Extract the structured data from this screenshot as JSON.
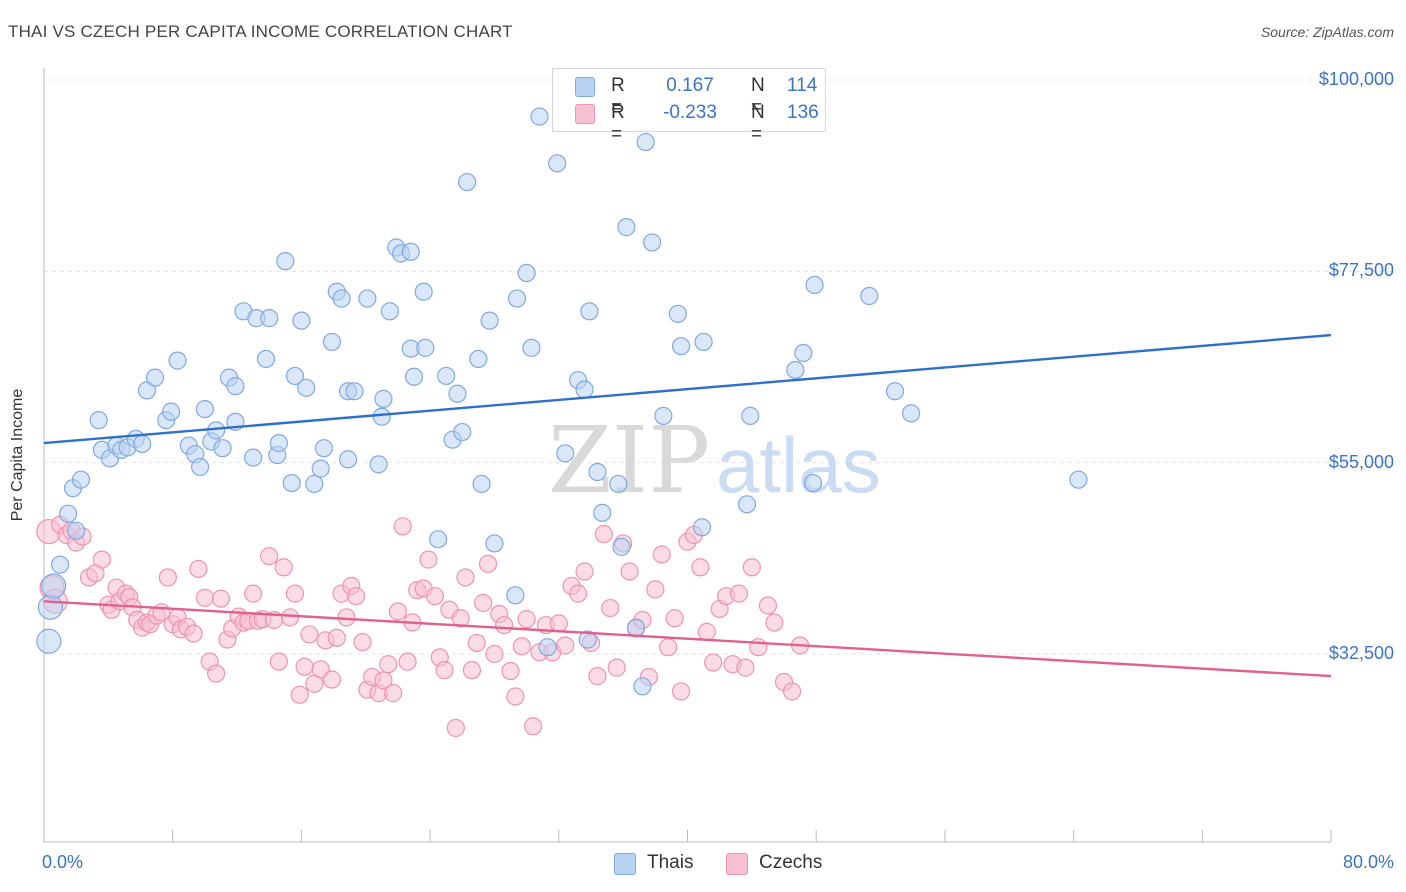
{
  "title": "THAI VS CZECH PER CAPITA INCOME CORRELATION CHART",
  "source": "Source: ZipAtlas.com",
  "watermark": {
    "zip": "ZIP",
    "atlas": "atlas"
  },
  "legend": {
    "thais": {
      "r_label": "R =",
      "r_value": "0.167",
      "n_label": "N =",
      "n_value": "114"
    },
    "czechs": {
      "r_label": "R =",
      "r_value": "-0.233",
      "n_label": "N =",
      "n_value": "136"
    }
  },
  "bottom_legend": {
    "thais": "Thais",
    "czechs": "Czechs"
  },
  "colors": {
    "thais_fill": "#b9d3f3",
    "thais_stroke": "#7fa9e0",
    "thais_line": "#2f6fcc",
    "czechs_fill": "#f7c0d2",
    "czechs_stroke": "#ee93b0",
    "czechs_line": "#e0608f",
    "tick_text": "#3a74c7"
  },
  "chart_data": {
    "type": "scatter",
    "title": "THAI VS CZECH PER CAPITA INCOME CORRELATION CHART",
    "ylabel": "Per Capita Income",
    "xlabel": "",
    "xlim": [
      0,
      80
    ],
    "ylim": [
      15000,
      105000
    ],
    "x_tick_labels": [
      {
        "value": 0,
        "label": "0.0%"
      },
      {
        "value": 80,
        "label": "80.0%"
      }
    ],
    "y_ticks": [
      {
        "value": 32500,
        "label": "$32,500"
      },
      {
        "value": 55000,
        "label": "$55,000"
      },
      {
        "value": 77500,
        "label": "$77,500"
      },
      {
        "value": 100000,
        "label": "$100,000"
      }
    ],
    "grid": true,
    "legend_position": "top-center",
    "series": [
      {
        "name": "Thais",
        "trend": {
          "x": [
            0,
            80
          ],
          "y": [
            57300,
            70000
          ]
        },
        "points": [
          [
            0.3,
            34000
          ],
          [
            0.4,
            38000
          ],
          [
            0.6,
            40500
          ],
          [
            1.0,
            43000
          ],
          [
            1.5,
            49000
          ],
          [
            1.8,
            52000
          ],
          [
            2.3,
            53000
          ],
          [
            2.0,
            47000
          ],
          [
            3.4,
            60000
          ],
          [
            3.6,
            56500
          ],
          [
            4.1,
            55500
          ],
          [
            4.5,
            57000
          ],
          [
            4.8,
            56500
          ],
          [
            5.2,
            56800
          ],
          [
            5.7,
            57800
          ],
          [
            6.1,
            57200
          ],
          [
            6.4,
            63500
          ],
          [
            6.9,
            65000
          ],
          [
            7.6,
            60000
          ],
          [
            7.9,
            61000
          ],
          [
            8.3,
            67000
          ],
          [
            9.0,
            57000
          ],
          [
            9.4,
            56000
          ],
          [
            9.7,
            54500
          ],
          [
            10.0,
            61300
          ],
          [
            10.4,
            57500
          ],
          [
            10.7,
            58800
          ],
          [
            11.1,
            56700
          ],
          [
            11.5,
            65000
          ],
          [
            11.9,
            59800
          ],
          [
            11.9,
            64000
          ],
          [
            12.4,
            72800
          ],
          [
            13.0,
            55600
          ],
          [
            13.2,
            72000
          ],
          [
            13.8,
            67200
          ],
          [
            14.0,
            72000
          ],
          [
            14.5,
            55900
          ],
          [
            14.6,
            57300
          ],
          [
            15.0,
            78700
          ],
          [
            15.4,
            52600
          ],
          [
            15.6,
            65200
          ],
          [
            16.0,
            71700
          ],
          [
            16.3,
            63800
          ],
          [
            16.8,
            52500
          ],
          [
            17.2,
            54300
          ],
          [
            17.4,
            56700
          ],
          [
            17.9,
            69200
          ],
          [
            18.2,
            75100
          ],
          [
            18.5,
            74300
          ],
          [
            18.9,
            63400
          ],
          [
            18.9,
            55400
          ],
          [
            19.3,
            63400
          ],
          [
            20.1,
            74300
          ],
          [
            20.8,
            54800
          ],
          [
            21.0,
            60400
          ],
          [
            21.1,
            62500
          ],
          [
            21.5,
            72800
          ],
          [
            21.9,
            80300
          ],
          [
            22.2,
            79600
          ],
          [
            22.8,
            79800
          ],
          [
            22.8,
            68400
          ],
          [
            23.0,
            65100
          ],
          [
            23.6,
            75100
          ],
          [
            23.7,
            68500
          ],
          [
            24.5,
            46000
          ],
          [
            25.0,
            65200
          ],
          [
            25.4,
            57700
          ],
          [
            25.7,
            63100
          ],
          [
            26.0,
            58600
          ],
          [
            26.3,
            88000
          ],
          [
            27.0,
            67200
          ],
          [
            27.2,
            52500
          ],
          [
            27.7,
            71700
          ],
          [
            28.0,
            45500
          ],
          [
            29.3,
            39400
          ],
          [
            29.4,
            74300
          ],
          [
            30.0,
            77300
          ],
          [
            30.3,
            68500
          ],
          [
            30.8,
            95700
          ],
          [
            31.3,
            33300
          ],
          [
            31.9,
            90200
          ],
          [
            32.4,
            56100
          ],
          [
            33.2,
            64700
          ],
          [
            33.6,
            63600
          ],
          [
            33.9,
            72800
          ],
          [
            34.4,
            53900
          ],
          [
            34.7,
            49100
          ],
          [
            35.7,
            52500
          ],
          [
            35.9,
            45100
          ],
          [
            36.2,
            82700
          ],
          [
            36.8,
            35600
          ],
          [
            37.2,
            28700
          ],
          [
            37.4,
            92700
          ],
          [
            37.8,
            80900
          ],
          [
            38.5,
            60500
          ],
          [
            39.4,
            72500
          ],
          [
            39.6,
            68700
          ],
          [
            40.9,
            47400
          ],
          [
            41.0,
            69200
          ],
          [
            43.7,
            50100
          ],
          [
            43.9,
            60500
          ],
          [
            46.7,
            65900
          ],
          [
            47.2,
            67900
          ],
          [
            47.8,
            52600
          ],
          [
            47.9,
            75900
          ],
          [
            51.3,
            74600
          ],
          [
            52.9,
            63400
          ],
          [
            53.9,
            60800
          ],
          [
            64.3,
            53000
          ],
          [
            33.8,
            34200
          ]
        ]
      },
      {
        "name": "Czechs",
        "trend": {
          "x": [
            0,
            80
          ],
          "y": [
            38700,
            29900
          ]
        },
        "points": [
          [
            0.3,
            46900
          ],
          [
            0.5,
            40300
          ],
          [
            0.7,
            38700
          ],
          [
            1.0,
            47700
          ],
          [
            1.4,
            46500
          ],
          [
            1.7,
            47000
          ],
          [
            2.0,
            45600
          ],
          [
            2.4,
            46300
          ],
          [
            2.8,
            41500
          ],
          [
            3.2,
            42000
          ],
          [
            3.6,
            43600
          ],
          [
            4.0,
            38300
          ],
          [
            4.2,
            37700
          ],
          [
            4.5,
            40300
          ],
          [
            4.7,
            38700
          ],
          [
            5.1,
            39600
          ],
          [
            5.3,
            39200
          ],
          [
            5.5,
            38000
          ],
          [
            5.8,
            36500
          ],
          [
            6.1,
            35600
          ],
          [
            6.4,
            36200
          ],
          [
            6.6,
            36000
          ],
          [
            7.0,
            37000
          ],
          [
            7.3,
            37400
          ],
          [
            7.7,
            41500
          ],
          [
            8.0,
            36000
          ],
          [
            8.3,
            36800
          ],
          [
            8.5,
            35400
          ],
          [
            8.9,
            35700
          ],
          [
            9.3,
            34900
          ],
          [
            9.6,
            42500
          ],
          [
            10.0,
            39100
          ],
          [
            10.3,
            31600
          ],
          [
            10.7,
            30200
          ],
          [
            11.0,
            39000
          ],
          [
            11.4,
            34200
          ],
          [
            11.7,
            35500
          ],
          [
            12.1,
            36900
          ],
          [
            12.4,
            36200
          ],
          [
            12.7,
            36400
          ],
          [
            13.0,
            39600
          ],
          [
            13.3,
            36400
          ],
          [
            13.6,
            36600
          ],
          [
            14.0,
            44000
          ],
          [
            14.3,
            36500
          ],
          [
            14.6,
            31600
          ],
          [
            14.9,
            42700
          ],
          [
            15.3,
            36800
          ],
          [
            15.6,
            39600
          ],
          [
            15.9,
            27700
          ],
          [
            16.2,
            31000
          ],
          [
            16.5,
            34800
          ],
          [
            16.8,
            29000
          ],
          [
            17.2,
            30700
          ],
          [
            17.5,
            34100
          ],
          [
            17.9,
            29500
          ],
          [
            18.2,
            34400
          ],
          [
            18.5,
            39600
          ],
          [
            18.8,
            36800
          ],
          [
            19.1,
            40500
          ],
          [
            19.4,
            39300
          ],
          [
            19.8,
            33900
          ],
          [
            20.1,
            28300
          ],
          [
            20.4,
            29800
          ],
          [
            20.8,
            27900
          ],
          [
            21.1,
            29400
          ],
          [
            21.4,
            31300
          ],
          [
            21.7,
            27900
          ],
          [
            22.0,
            37500
          ],
          [
            22.3,
            47500
          ],
          [
            22.6,
            31600
          ],
          [
            22.9,
            36200
          ],
          [
            23.2,
            40000
          ],
          [
            23.6,
            40200
          ],
          [
            23.9,
            43600
          ],
          [
            24.3,
            39300
          ],
          [
            24.6,
            32100
          ],
          [
            24.9,
            30600
          ],
          [
            25.2,
            37700
          ],
          [
            25.6,
            23800
          ],
          [
            25.9,
            36700
          ],
          [
            26.2,
            41500
          ],
          [
            26.6,
            30600
          ],
          [
            26.9,
            33800
          ],
          [
            27.3,
            38500
          ],
          [
            27.6,
            43100
          ],
          [
            28.0,
            32500
          ],
          [
            28.3,
            37200
          ],
          [
            28.6,
            35900
          ],
          [
            29.0,
            30500
          ],
          [
            29.3,
            27500
          ],
          [
            29.7,
            33400
          ],
          [
            30.0,
            36600
          ],
          [
            30.4,
            24000
          ],
          [
            30.8,
            32700
          ],
          [
            31.2,
            35900
          ],
          [
            31.6,
            32700
          ],
          [
            32.0,
            36100
          ],
          [
            32.4,
            33500
          ],
          [
            32.8,
            40500
          ],
          [
            33.2,
            39600
          ],
          [
            33.6,
            42200
          ],
          [
            34.0,
            33800
          ],
          [
            34.4,
            29900
          ],
          [
            34.8,
            46600
          ],
          [
            35.2,
            37900
          ],
          [
            35.6,
            30900
          ],
          [
            36.0,
            45500
          ],
          [
            36.4,
            42200
          ],
          [
            36.8,
            35500
          ],
          [
            37.2,
            36500
          ],
          [
            37.6,
            29800
          ],
          [
            38.0,
            40100
          ],
          [
            38.4,
            44200
          ],
          [
            38.8,
            33300
          ],
          [
            39.2,
            36700
          ],
          [
            39.6,
            28100
          ],
          [
            40.0,
            45700
          ],
          [
            40.4,
            46500
          ],
          [
            40.8,
            42700
          ],
          [
            41.2,
            35100
          ],
          [
            41.6,
            31500
          ],
          [
            42.0,
            37800
          ],
          [
            42.4,
            39300
          ],
          [
            42.8,
            31300
          ],
          [
            43.2,
            39600
          ],
          [
            43.6,
            30900
          ],
          [
            44.0,
            42700
          ],
          [
            44.4,
            33300
          ],
          [
            45.0,
            38200
          ],
          [
            45.4,
            36200
          ],
          [
            46.0,
            29200
          ],
          [
            46.5,
            28100
          ],
          [
            47.0,
            33500
          ]
        ]
      }
    ]
  }
}
